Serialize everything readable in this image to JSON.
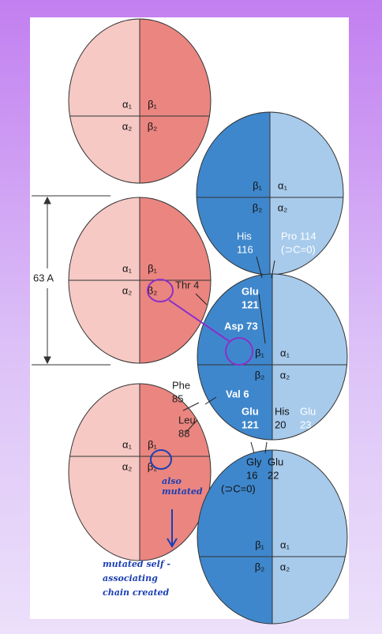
{
  "molecules": [
    {
      "subunits": [
        "α₁",
        "β₁",
        "α₂",
        "β₂"
      ]
    },
    {
      "subunits": [
        "β₁",
        "α₁",
        "β₂",
        "α₂"
      ]
    },
    {
      "subunits": [
        "α₁",
        "β₁",
        "α₂",
        "β₂"
      ]
    },
    {
      "subunits": [
        "β₁",
        "α₁",
        "β₂",
        "α₂"
      ]
    },
    {
      "subunits": [
        "α₁",
        "β₁",
        "α₂",
        "β₂"
      ]
    },
    {
      "subunits": [
        "β₁",
        "α₁",
        "β₂",
        "α₂"
      ]
    }
  ],
  "scale_label": "63 A",
  "residues": [
    {
      "lines": [
        "His",
        "116"
      ]
    },
    {
      "lines": [
        "Pro 114",
        "(⊃C=0)"
      ]
    },
    {
      "lines": [
        "Thr 4"
      ]
    },
    {
      "lines": [
        "Glu",
        "121"
      ]
    },
    {
      "lines": [
        "Asp 73"
      ]
    },
    {
      "lines": [
        "Phe",
        "85"
      ]
    },
    {
      "lines": [
        "Leu",
        "88"
      ]
    },
    {
      "lines": [
        "Val 6"
      ]
    },
    {
      "lines": [
        "Glu",
        "121"
      ]
    },
    {
      "lines": [
        "His",
        "20"
      ]
    },
    {
      "lines": [
        "Glu",
        "23"
      ]
    },
    {
      "lines": [
        "Gly",
        "16"
      ]
    },
    {
      "lines": [
        "Glu",
        "22"
      ]
    },
    {
      "lines": [
        "(⊃C=0)"
      ]
    }
  ],
  "annotations": [
    {
      "lines": [
        "also",
        "mutated"
      ]
    },
    {
      "lines": [
        "mutated self -",
        "associating",
        "chain created"
      ]
    }
  ]
}
